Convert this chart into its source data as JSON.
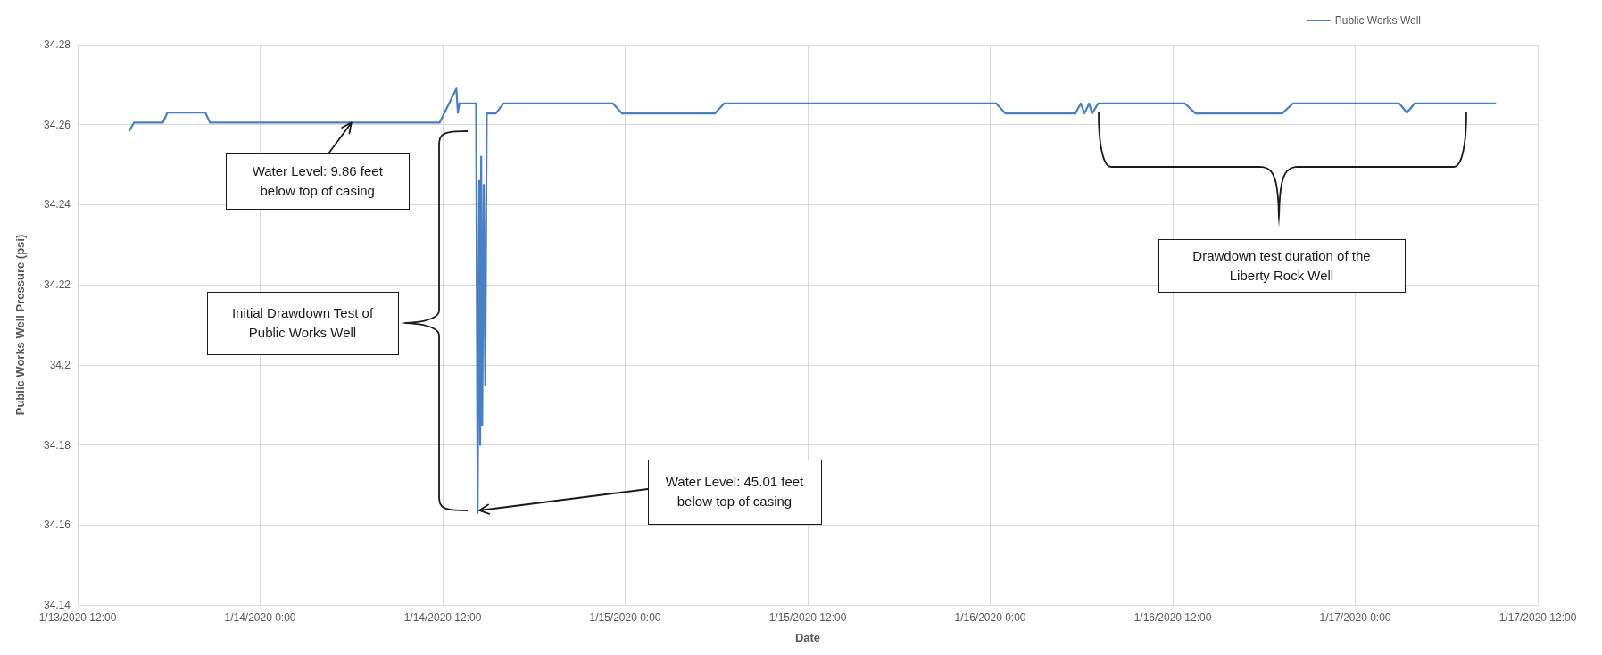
{
  "chart_data": {
    "type": "line",
    "xlabel": "Date",
    "ylabel": "Public Works Well Pressure (psi)",
    "legend": "top right",
    "grid": true,
    "marker": "none",
    "line_style": "solid",
    "xlim": [
      "2020-01-13T12:00",
      "2020-01-17T12:00"
    ],
    "xticks": [
      {
        "value": "2020-01-13T12:00",
        "label": "1/13/2020 12:00"
      },
      {
        "value": "2020-01-14T00:00",
        "label": "1/14/2020 0:00"
      },
      {
        "value": "2020-01-14T12:00",
        "label": "1/14/2020 12:00"
      },
      {
        "value": "2020-01-15T00:00",
        "label": "1/15/2020 0:00"
      },
      {
        "value": "2020-01-15T12:00",
        "label": "1/15/2020 12:00"
      },
      {
        "value": "2020-01-16T00:00",
        "label": "1/16/2020 0:00"
      },
      {
        "value": "2020-01-16T12:00",
        "label": "1/16/2020 12:00"
      },
      {
        "value": "2020-01-17T00:00",
        "label": "1/17/2020 0:00"
      },
      {
        "value": "2020-01-17T12:00",
        "label": "1/17/2020 12:00"
      }
    ],
    "ylim": [
      34.14,
      34.28
    ],
    "yticks": [
      34.14,
      34.16,
      34.18,
      34.2,
      34.22,
      34.24,
      34.26,
      34.28
    ],
    "x": [
      "2020-01-13T15:24",
      "2020-01-13T15:42",
      "2020-01-13T17:36",
      "2020-01-13T17:54",
      "2020-01-13T20:24",
      "2020-01-13T20:42",
      "2020-01-14T11:48",
      "2020-01-14T12:54",
      "2020-01-14T13:00",
      "2020-01-14T13:06",
      "2020-01-14T14:12",
      "2020-01-14T14:18",
      "2020-01-14T14:24",
      "2020-01-14T14:28",
      "2020-01-14T14:32",
      "2020-01-14T14:36",
      "2020-01-14T14:42",
      "2020-01-14T14:48",
      "2020-01-14T14:54",
      "2020-01-14T15:30",
      "2020-01-14T16:00",
      "2020-01-14T23:12",
      "2020-01-14T23:48",
      "2020-01-15T05:54",
      "2020-01-15T06:30",
      "2020-01-16T00:24",
      "2020-01-16T01:00",
      "2020-01-16T05:36",
      "2020-01-16T05:57",
      "2020-01-16T06:12",
      "2020-01-16T06:30",
      "2020-01-16T06:42",
      "2020-01-16T07:06",
      "2020-01-16T12:48",
      "2020-01-16T13:30",
      "2020-01-16T19:12",
      "2020-01-16T19:54",
      "2020-01-17T02:54",
      "2020-01-17T03:24",
      "2020-01-17T03:54",
      "2020-01-17T09:12"
    ],
    "series": [
      {
        "name": "Public Works Well",
        "color": "#4a7fc1",
        "values": [
          34.2585,
          34.2605,
          34.2605,
          34.263,
          34.263,
          34.2605,
          34.2605,
          34.269,
          34.263,
          34.2653,
          34.2653,
          34.163,
          34.246,
          34.18,
          34.252,
          34.185,
          34.245,
          34.195,
          34.2628,
          34.2628,
          34.2653,
          34.2653,
          34.2628,
          34.2628,
          34.2653,
          34.2653,
          34.2628,
          34.2628,
          34.2653,
          34.2628,
          34.2653,
          34.2628,
          34.2653,
          34.2653,
          34.2628,
          34.2628,
          34.2653,
          34.2653,
          34.263,
          34.2653,
          34.2653
        ]
      }
    ],
    "annotations": [
      {
        "text": "Water Level: 9.86 feet below top of casing",
        "x": "2020-01-14T06:00",
        "y": 34.2605
      },
      "Initial Drawdown Test of Public Works Well",
      "Water Level: 45.01 feet below top of casing",
      "Drawdown test duration of the Liberty Rock Well"
    ]
  }
}
